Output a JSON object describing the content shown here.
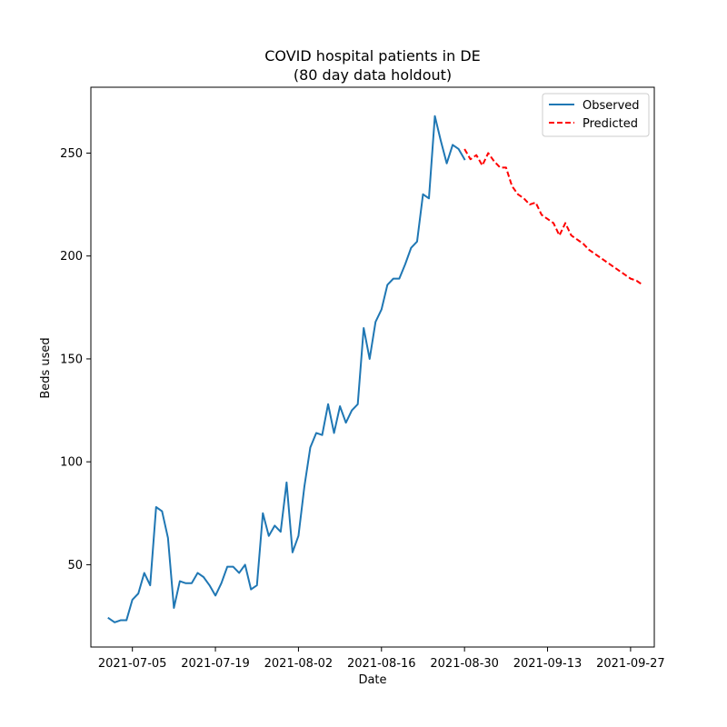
{
  "chart_data": {
    "type": "line",
    "title": "COVID hospital patients in DE",
    "subtitle": "(80 day data holdout)",
    "xlabel": "Date",
    "ylabel": "Beds used",
    "xlim": [
      "2021-06-28",
      "2021-10-01"
    ],
    "ylim": [
      10,
      282
    ],
    "x_ticks": [
      "2021-07-05",
      "2021-07-19",
      "2021-08-02",
      "2021-08-16",
      "2021-08-30",
      "2021-09-13",
      "2021-09-27"
    ],
    "y_ticks": [
      50,
      100,
      150,
      200,
      250
    ],
    "grid": false,
    "legend": {
      "position": "top-right",
      "entries": [
        "Observed",
        "Predicted"
      ]
    },
    "series": [
      {
        "name": "Observed",
        "color": "#1f77b4",
        "style": "solid",
        "x": [
          "2021-07-01",
          "2021-07-02",
          "2021-07-03",
          "2021-07-04",
          "2021-07-05",
          "2021-07-06",
          "2021-07-07",
          "2021-07-08",
          "2021-07-09",
          "2021-07-10",
          "2021-07-11",
          "2021-07-12",
          "2021-07-13",
          "2021-07-14",
          "2021-07-15",
          "2021-07-16",
          "2021-07-17",
          "2021-07-18",
          "2021-07-19",
          "2021-07-20",
          "2021-07-21",
          "2021-07-22",
          "2021-07-23",
          "2021-07-24",
          "2021-07-25",
          "2021-07-26",
          "2021-07-27",
          "2021-07-28",
          "2021-07-29",
          "2021-07-30",
          "2021-07-31",
          "2021-08-01",
          "2021-08-02",
          "2021-08-03",
          "2021-08-04",
          "2021-08-05",
          "2021-08-06",
          "2021-08-07",
          "2021-08-08",
          "2021-08-09",
          "2021-08-10",
          "2021-08-11",
          "2021-08-12",
          "2021-08-13",
          "2021-08-14",
          "2021-08-15",
          "2021-08-16",
          "2021-08-17",
          "2021-08-18",
          "2021-08-19",
          "2021-08-20",
          "2021-08-21",
          "2021-08-22",
          "2021-08-23",
          "2021-08-24",
          "2021-08-25",
          "2021-08-26",
          "2021-08-27",
          "2021-08-28",
          "2021-08-29",
          "2021-08-30"
        ],
        "y": [
          24,
          22,
          23,
          23,
          33,
          36,
          46,
          40,
          78,
          76,
          63,
          29,
          42,
          41,
          41,
          46,
          44,
          40,
          35,
          41,
          49,
          49,
          46,
          50,
          38,
          40,
          75,
          64,
          69,
          66,
          90,
          56,
          64,
          88,
          107,
          114,
          113,
          128,
          114,
          127,
          119,
          125,
          128,
          165,
          150,
          168,
          174,
          186,
          189,
          189,
          196,
          204,
          207,
          230,
          228,
          268,
          256,
          245,
          254,
          252,
          247
        ]
      },
      {
        "name": "Predicted",
        "color": "#ff0000",
        "style": "dashed",
        "x": [
          "2021-08-30",
          "2021-08-31",
          "2021-09-01",
          "2021-09-02",
          "2021-09-03",
          "2021-09-04",
          "2021-09-05",
          "2021-09-06",
          "2021-09-07",
          "2021-09-08",
          "2021-09-09",
          "2021-09-10",
          "2021-09-11",
          "2021-09-12",
          "2021-09-13",
          "2021-09-14",
          "2021-09-15",
          "2021-09-16",
          "2021-09-17",
          "2021-09-18",
          "2021-09-19",
          "2021-09-20",
          "2021-09-21",
          "2021-09-22",
          "2021-09-23",
          "2021-09-24",
          "2021-09-25",
          "2021-09-26",
          "2021-09-27",
          "2021-09-28",
          "2021-09-29"
        ],
        "y": [
          252,
          247,
          249,
          244,
          250,
          246,
          243,
          243,
          234,
          230,
          228,
          225,
          226,
          220,
          218,
          216,
          210,
          216,
          210,
          208,
          206,
          203,
          201,
          199,
          197,
          195,
          193,
          191,
          189,
          188,
          186
        ]
      }
    ]
  }
}
